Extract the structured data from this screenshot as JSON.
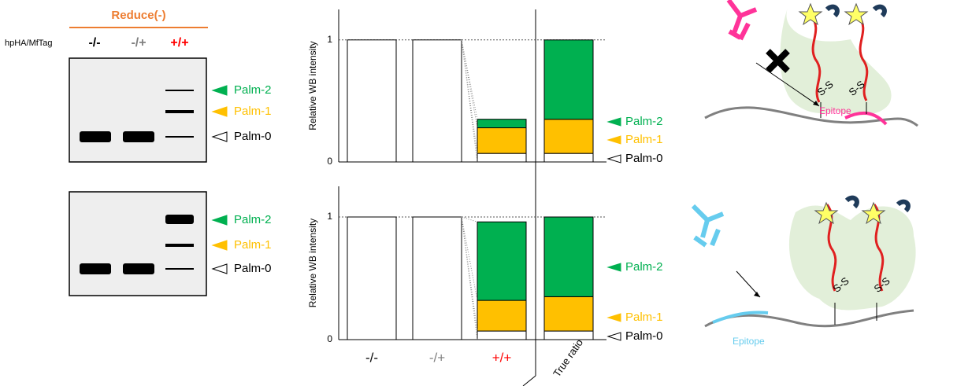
{
  "chart_data": [
    {
      "type": "bar",
      "stacked": true,
      "y_label": "Relative WB intensity",
      "categories": [
        null,
        null,
        null,
        null
      ],
      "ylim": [
        0,
        1.25
      ],
      "yticks": [
        0,
        1
      ],
      "grid": true,
      "series": [
        {
          "name": "Palm-0",
          "color": "#ffffff",
          "values": [
            1,
            1,
            0.07,
            0.07
          ]
        },
        {
          "name": "Palm-1",
          "color": "#ffc000",
          "values": [
            0,
            0,
            0.21,
            0.28
          ]
        },
        {
          "name": "Palm-2",
          "color": "#00b050",
          "values": [
            0,
            0,
            0.07,
            0.65
          ]
        }
      ]
    },
    {
      "type": "bar",
      "stacked": true,
      "y_label": "Relative WB intensity",
      "categories": [
        "-/-",
        "-/+",
        "+/+",
        "True ratio"
      ],
      "category_colors": [
        "#000000",
        "#808080",
        "#ff0000",
        "#000000"
      ],
      "ylim": [
        0,
        1.25
      ],
      "yticks": [
        0,
        1
      ],
      "grid": true,
      "series": [
        {
          "name": "Palm-0",
          "color": "#ffffff",
          "values": [
            1,
            1,
            0.07,
            0.07
          ]
        },
        {
          "name": "Palm-1",
          "color": "#ffc000",
          "values": [
            0,
            0,
            0.25,
            0.28
          ]
        },
        {
          "name": "Palm-2",
          "color": "#00b050",
          "values": [
            0,
            0,
            0.64,
            0.65
          ]
        }
      ]
    }
  ],
  "gels": {
    "header": "Reduce(-)",
    "row_label": "hpHA/MfTag",
    "lanes": [
      "-/-",
      "-/+",
      "+/+"
    ],
    "lane_colors": [
      "#000000",
      "#808080",
      "#ff0000"
    ],
    "band_labels": [
      "Palm-2",
      "Palm-1",
      "Palm-0"
    ],
    "band_label_colors": [
      "#00b050",
      "#ffc000",
      "#000000"
    ]
  },
  "diagram": {
    "top_epitope": "Epitope",
    "bottom_epitope": "Epitope",
    "disulfide_labels": [
      "S-S",
      "S-S",
      "S-S",
      "S-S"
    ]
  }
}
